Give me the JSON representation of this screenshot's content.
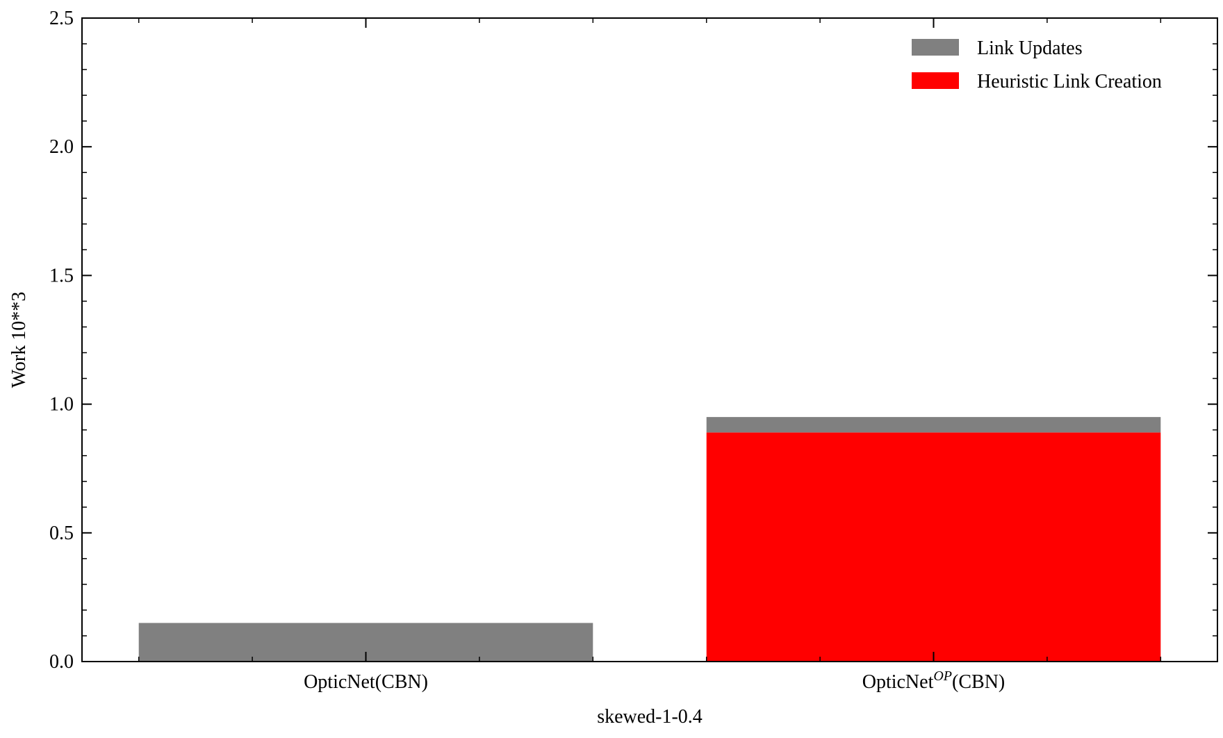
{
  "chart_data": {
    "type": "bar",
    "stacked": true,
    "categories": [
      "OpticNet(CBN)",
      "OpticNet"
    ],
    "category_superscripts": [
      "",
      "OP"
    ],
    "category_suffixes": [
      "",
      "(CBN)"
    ],
    "series": [
      {
        "name": "Heuristic Link Creation",
        "color": "#ff0000",
        "values": [
          0.0,
          0.89
        ]
      },
      {
        "name": "Link Updates",
        "color": "#808080",
        "values": [
          0.15,
          0.06
        ]
      }
    ],
    "legend": {
      "position": "top-right",
      "order": [
        "Link Updates",
        "Heuristic Link Creation"
      ],
      "colors": [
        "#808080",
        "#ff0000"
      ]
    },
    "title": "",
    "xlabel": "skewed-1-0.4",
    "ylabel": "Work 10**3",
    "ylim": [
      0,
      2.5
    ],
    "yticks": [
      0.0,
      0.5,
      1.0,
      1.5,
      2.0,
      2.5
    ],
    "ytick_labels": [
      "0.0",
      "0.5",
      "1.0",
      "1.5",
      "2.0",
      "2.5"
    ],
    "grid": false
  }
}
